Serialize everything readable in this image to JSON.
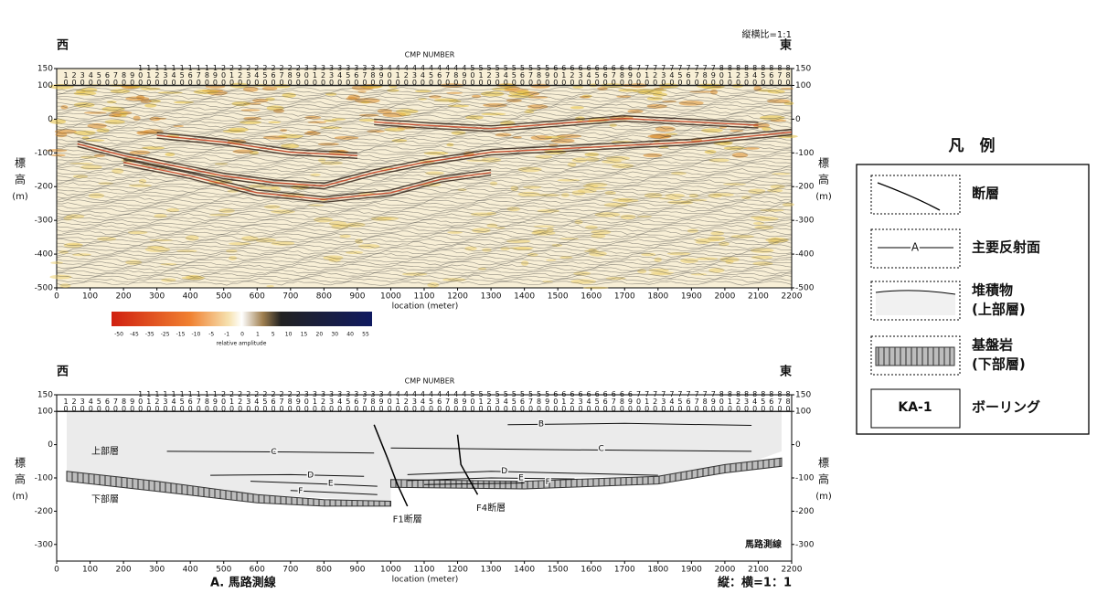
{
  "top_panel": {
    "west": "西",
    "east": "東",
    "cmp_title": "CMP NUMBER",
    "aspect": "縦横比=1:1",
    "cmp_numbers": [
      10,
      20,
      30,
      40,
      50,
      60,
      70,
      80,
      90,
      100,
      110,
      120,
      130,
      140,
      150,
      160,
      170,
      180,
      190,
      200,
      210,
      220,
      230,
      240,
      250,
      260,
      270,
      280,
      290,
      300,
      310,
      320,
      330,
      340,
      350,
      360,
      370,
      380,
      390,
      400,
      410,
      420,
      430,
      440,
      450,
      460,
      470,
      480,
      490,
      500,
      510,
      520,
      530,
      540,
      550,
      560,
      570,
      580,
      590,
      600,
      610,
      620,
      630,
      640,
      650,
      660,
      670,
      680,
      690,
      700,
      710,
      720,
      730,
      740,
      750,
      760,
      770,
      780,
      790,
      800,
      810,
      820,
      830,
      840,
      850,
      860,
      870,
      880
    ],
    "y_label_1": "標",
    "y_label_2": "高",
    "y_unit": "(m)",
    "yticks": [
      150,
      100,
      0,
      -100,
      -200,
      -300,
      -400,
      -500
    ],
    "xticks": [
      0,
      100,
      200,
      300,
      400,
      500,
      600,
      700,
      800,
      900,
      1000,
      1100,
      1200,
      1300,
      1400,
      1500,
      1600,
      1700,
      1800,
      1900,
      2000,
      2100,
      2200
    ],
    "x_label": "location (meter)",
    "colorbar": {
      "ticks": [
        "-50",
        "-45",
        "-35",
        "-25",
        "-15",
        "-10",
        "-5",
        "-1",
        "0",
        "1",
        "5",
        "10",
        "15",
        "20",
        "30",
        "40",
        "55"
      ],
      "label": "relative amplitude"
    }
  },
  "bottom_panel": {
    "west": "西",
    "east": "東",
    "cmp_title": "CMP NUMBER",
    "cmp_numbers": [
      10,
      20,
      30,
      40,
      50,
      60,
      70,
      80,
      90,
      100,
      110,
      120,
      130,
      140,
      150,
      160,
      170,
      180,
      190,
      200,
      210,
      220,
      230,
      240,
      250,
      260,
      270,
      280,
      290,
      300,
      310,
      320,
      330,
      340,
      350,
      360,
      370,
      380,
      390,
      400,
      410,
      420,
      430,
      440,
      450,
      460,
      470,
      480,
      490,
      500,
      510,
      520,
      530,
      540,
      550,
      560,
      570,
      580,
      590,
      600,
      610,
      620,
      630,
      640,
      650,
      660,
      670,
      680,
      690,
      700,
      710,
      720,
      730,
      740,
      750,
      760,
      770,
      780,
      790,
      800,
      810,
      820,
      830,
      840,
      850,
      860,
      870,
      880
    ],
    "y_label_1": "標",
    "y_label_2": "高",
    "y_unit": "(m)",
    "yticks": [
      150,
      100,
      0,
      -100,
      -200,
      -300
    ],
    "xticks": [
      0,
      100,
      200,
      300,
      400,
      500,
      600,
      700,
      800,
      900,
      1000,
      1100,
      1200,
      1300,
      1400,
      1500,
      1600,
      1700,
      1800,
      1900,
      2000,
      2100,
      2200
    ],
    "x_label": "location (meter)",
    "upper": "上部層",
    "lower": "下部層",
    "line_name": "馬路測線",
    "fault_f1": "F1断層",
    "fault_f4": "F4断層",
    "horizons": [
      "B",
      "C",
      "C",
      "D",
      "D",
      "E",
      "E",
      "F",
      "F"
    ],
    "caption": "A. 馬路測線",
    "ratio": "縦：横=1：1"
  },
  "legend": {
    "title": "凡　例",
    "items": [
      {
        "label": "断層"
      },
      {
        "label": "主要反射面",
        "symbol": "A"
      },
      {
        "label": "堆積物",
        "sub": "(上部層)"
      },
      {
        "label": "基盤岩",
        "sub": "(下部層)"
      },
      {
        "label": "ボーリング",
        "symbol": "KA-1"
      }
    ]
  }
}
